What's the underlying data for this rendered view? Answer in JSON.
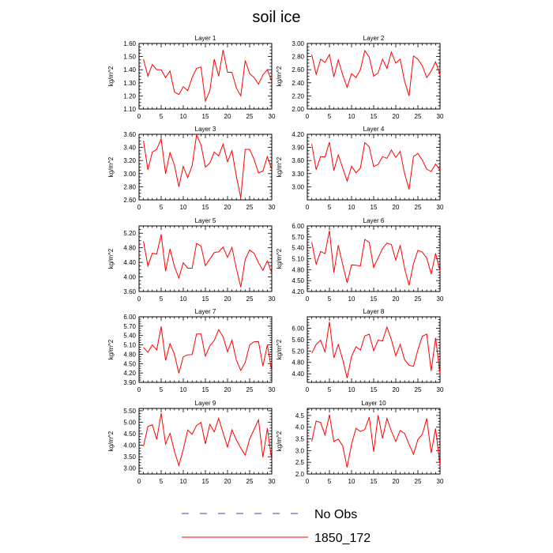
{
  "figure": {
    "title": "soil ice",
    "legend": {
      "placement": "bottom-center",
      "entries": [
        {
          "label": "No Obs",
          "color": "#3b4aa8",
          "style": "dashed"
        },
        {
          "label": "1850_172",
          "color": "#ff0000",
          "style": "solid"
        }
      ]
    }
  },
  "chart_data": [
    {
      "type": "line",
      "title": "Layer 1",
      "ylabel": "kg/m^2",
      "xlim": [
        0,
        30
      ],
      "ylim": [
        1.1,
        1.6
      ],
      "xticks": [
        "0",
        "5",
        "10",
        "15",
        "20",
        "25",
        "30"
      ],
      "yticks": [
        "1.10",
        "1.20",
        "1.30",
        "1.40",
        "1.50",
        "1.60"
      ],
      "series": [
        {
          "color": "#ff0000",
          "x": [
            1,
            2,
            3,
            4,
            5,
            6,
            7,
            8,
            9,
            10,
            11,
            12,
            13,
            14,
            15,
            16,
            17,
            18,
            19,
            20,
            21,
            22,
            23,
            24,
            25,
            26,
            27,
            28,
            29,
            30
          ],
          "y": [
            1.48,
            1.35,
            1.44,
            1.4,
            1.4,
            1.34,
            1.39,
            1.23,
            1.21,
            1.27,
            1.24,
            1.34,
            1.41,
            1.42,
            1.16,
            1.24,
            1.48,
            1.35,
            1.55,
            1.38,
            1.38,
            1.26,
            1.2,
            1.47,
            1.37,
            1.34,
            1.29,
            1.36,
            1.4,
            1.31
          ]
        }
      ]
    },
    {
      "type": "line",
      "title": "Layer 2",
      "ylabel": "kg/m^2",
      "xlim": [
        0,
        30
      ],
      "ylim": [
        2.0,
        3.0
      ],
      "xticks": [
        "0",
        "5",
        "10",
        "15",
        "20",
        "25",
        "30"
      ],
      "yticks": [
        "2.00",
        "2.20",
        "2.40",
        "2.60",
        "2.80",
        "3.00"
      ],
      "series": [
        {
          "color": "#ff0000",
          "x": [
            1,
            2,
            3,
            4,
            5,
            6,
            7,
            8,
            9,
            10,
            11,
            12,
            13,
            14,
            15,
            16,
            17,
            18,
            19,
            20,
            21,
            22,
            23,
            24,
            25,
            26,
            27,
            28,
            29,
            30
          ],
          "y": [
            2.83,
            2.53,
            2.76,
            2.71,
            2.83,
            2.49,
            2.75,
            2.52,
            2.33,
            2.54,
            2.48,
            2.6,
            2.89,
            2.79,
            2.5,
            2.55,
            2.76,
            2.62,
            2.87,
            2.7,
            2.76,
            2.42,
            2.2,
            2.81,
            2.76,
            2.66,
            2.48,
            2.58,
            2.72,
            2.52
          ]
        }
      ]
    },
    {
      "type": "line",
      "title": "Layer 3",
      "ylabel": "kg/m^2",
      "xlim": [
        0,
        30
      ],
      "ylim": [
        2.6,
        3.6
      ],
      "xticks": [
        "0",
        "5",
        "10",
        "15",
        "20",
        "25",
        "30"
      ],
      "yticks": [
        "2.60",
        "2.80",
        "3.00",
        "3.20",
        "3.40",
        "3.60"
      ],
      "series": [
        {
          "color": "#ff0000",
          "x": [
            1,
            2,
            3,
            4,
            5,
            6,
            7,
            8,
            9,
            10,
            11,
            12,
            13,
            14,
            15,
            16,
            17,
            18,
            19,
            20,
            21,
            22,
            23,
            24,
            25,
            26,
            27,
            28,
            29,
            30
          ],
          "y": [
            3.5,
            3.06,
            3.33,
            3.37,
            3.53,
            3.0,
            3.32,
            3.13,
            2.8,
            3.11,
            2.94,
            3.12,
            3.59,
            3.44,
            3.1,
            3.16,
            3.33,
            3.27,
            3.45,
            3.18,
            3.35,
            2.96,
            2.63,
            3.37,
            3.37,
            3.22,
            3.01,
            3.04,
            3.26,
            3.06
          ]
        }
      ]
    },
    {
      "type": "line",
      "title": "Layer 4",
      "ylabel": "kg/m^2",
      "xlim": [
        0,
        30
      ],
      "ylim": [
        2.7,
        4.2
      ],
      "xticks": [
        "0",
        "5",
        "10",
        "15",
        "20",
        "25",
        "30"
      ],
      "yticks": [
        "3.00",
        "3.30",
        "3.60",
        "3.90",
        "4.20"
      ],
      "series": [
        {
          "color": "#ff0000",
          "x": [
            1,
            2,
            3,
            4,
            5,
            6,
            7,
            8,
            9,
            10,
            11,
            12,
            13,
            14,
            15,
            16,
            17,
            18,
            19,
            20,
            21,
            22,
            23,
            24,
            25,
            26,
            27,
            28,
            29,
            30
          ],
          "y": [
            3.98,
            3.39,
            3.69,
            3.68,
            4.02,
            3.37,
            3.73,
            3.43,
            3.13,
            3.47,
            3.32,
            3.43,
            4.01,
            3.91,
            3.46,
            3.51,
            3.69,
            3.65,
            3.84,
            3.67,
            3.81,
            3.3,
            2.94,
            3.69,
            3.76,
            3.61,
            3.4,
            3.35,
            3.52,
            3.38
          ]
        }
      ]
    },
    {
      "type": "line",
      "title": "Layer 5",
      "ylabel": "kg/m^2",
      "xlim": [
        0,
        30
      ],
      "ylim": [
        3.6,
        5.4
      ],
      "xticks": [
        "0",
        "5",
        "10",
        "15",
        "20",
        "25",
        "30"
      ],
      "yticks": [
        "3.60",
        "4.00",
        "4.40",
        "4.80",
        "5.20"
      ],
      "series": [
        {
          "color": "#ff0000",
          "x": [
            1,
            2,
            3,
            4,
            5,
            6,
            7,
            8,
            9,
            10,
            11,
            12,
            13,
            14,
            15,
            16,
            17,
            18,
            19,
            20,
            21,
            22,
            23,
            24,
            25,
            26,
            27,
            28,
            29,
            30
          ],
          "y": [
            4.98,
            4.3,
            4.65,
            4.63,
            5.17,
            4.16,
            4.77,
            4.29,
            3.97,
            4.39,
            4.24,
            4.24,
            4.92,
            4.85,
            4.31,
            4.49,
            4.67,
            4.69,
            4.82,
            4.54,
            4.81,
            4.23,
            3.72,
            4.48,
            4.74,
            4.65,
            4.39,
            4.18,
            4.44,
            4.11
          ]
        }
      ]
    },
    {
      "type": "line",
      "title": "Layer 6",
      "ylabel": "kg/m^2",
      "xlim": [
        0,
        30
      ],
      "ylim": [
        4.2,
        6.0
      ],
      "xticks": [
        "0",
        "5",
        "10",
        "15",
        "20",
        "25",
        "30"
      ],
      "yticks": [
        "4.20",
        "4.50",
        "4.80",
        "5.10",
        "5.40",
        "5.70",
        "6.00"
      ],
      "series": [
        {
          "color": "#ff0000",
          "x": [
            1,
            2,
            3,
            4,
            5,
            6,
            7,
            8,
            9,
            10,
            11,
            12,
            13,
            14,
            15,
            16,
            17,
            18,
            19,
            20,
            21,
            22,
            23,
            24,
            25,
            26,
            27,
            28,
            29,
            30
          ],
          "y": [
            5.55,
            4.95,
            5.3,
            5.24,
            5.87,
            4.72,
            5.47,
            4.94,
            4.44,
            4.93,
            4.92,
            4.9,
            5.63,
            5.55,
            4.86,
            5.12,
            5.38,
            5.53,
            5.49,
            5.06,
            5.47,
            4.83,
            4.37,
            4.96,
            5.33,
            5.28,
            5.12,
            4.68,
            5.25,
            4.76
          ]
        }
      ]
    },
    {
      "type": "line",
      "title": "Layer 7",
      "ylabel": "kg/m^2",
      "xlim": [
        0,
        30
      ],
      "ylim": [
        3.9,
        6.0
      ],
      "xticks": [
        "0",
        "5",
        "10",
        "15",
        "20",
        "25",
        "30"
      ],
      "yticks": [
        "3.90",
        "4.20",
        "4.50",
        "4.80",
        "5.10",
        "5.40",
        "5.70",
        "6.00"
      ],
      "series": [
        {
          "color": "#ff0000",
          "x": [
            1,
            2,
            3,
            4,
            5,
            6,
            7,
            8,
            9,
            10,
            11,
            12,
            13,
            14,
            15,
            16,
            17,
            18,
            19,
            20,
            21,
            22,
            23,
            24,
            25,
            26,
            27,
            28,
            29,
            30
          ],
          "y": [
            5.02,
            4.86,
            5.1,
            4.94,
            5.69,
            4.6,
            5.14,
            4.8,
            4.19,
            4.72,
            4.78,
            4.79,
            5.45,
            5.45,
            4.74,
            5.07,
            5.24,
            5.59,
            5.36,
            4.88,
            5.25,
            4.61,
            4.28,
            4.54,
            5.1,
            5.2,
            5.21,
            4.42,
            5.1,
            4.25
          ]
        }
      ]
    },
    {
      "type": "line",
      "title": "Layer 8",
      "ylabel": "kg/m^2",
      "xlim": [
        0,
        30
      ],
      "ylim": [
        4.1,
        6.4
      ],
      "xticks": [
        "0",
        "5",
        "10",
        "15",
        "20",
        "25",
        "30"
      ],
      "yticks": [
        "4.40",
        "4.80",
        "5.20",
        "5.60",
        "6.00"
      ],
      "series": [
        {
          "color": "#ff0000",
          "x": [
            1,
            2,
            3,
            4,
            5,
            6,
            7,
            8,
            9,
            10,
            11,
            12,
            13,
            14,
            15,
            16,
            17,
            18,
            19,
            20,
            21,
            22,
            23,
            24,
            25,
            26,
            27,
            28,
            29,
            30
          ],
          "y": [
            5.12,
            5.43,
            5.58,
            5.17,
            6.22,
            4.96,
            5.43,
            4.9,
            4.25,
            5.01,
            5.35,
            5.23,
            5.73,
            5.79,
            5.21,
            5.58,
            5.55,
            6.04,
            5.6,
            5.03,
            5.43,
            4.89,
            4.7,
            4.66,
            5.24,
            5.72,
            5.79,
            4.5,
            5.66,
            4.4
          ]
        }
      ]
    },
    {
      "type": "line",
      "title": "Layer 9",
      "ylabel": "kg/m^2",
      "xlim": [
        0,
        30
      ],
      "ylim": [
        2.75,
        5.6
      ],
      "xticks": [
        "0",
        "5",
        "10",
        "15",
        "20",
        "25",
        "30"
      ],
      "yticks": [
        "3.00",
        "3.50",
        "4.00",
        "4.50",
        "5.00",
        "5.50"
      ],
      "series": [
        {
          "color": "#ff0000",
          "x": [
            1,
            2,
            3,
            4,
            5,
            6,
            7,
            8,
            9,
            10,
            11,
            12,
            13,
            14,
            15,
            16,
            17,
            18,
            19,
            20,
            21,
            22,
            23,
            24,
            25,
            26,
            27,
            28,
            29,
            30
          ],
          "y": [
            3.95,
            4.82,
            4.89,
            4.25,
            5.39,
            4.05,
            4.52,
            3.74,
            3.12,
            3.82,
            4.66,
            4.48,
            4.86,
            4.99,
            4.06,
            4.91,
            4.58,
            5.17,
            4.54,
            3.92,
            4.67,
            4.23,
            3.88,
            3.57,
            4.27,
            4.69,
            5.11,
            3.48,
            4.74,
            3.34
          ]
        }
      ]
    },
    {
      "type": "line",
      "title": "Layer 10",
      "ylabel": "kg/m^2",
      "xlim": [
        0,
        30
      ],
      "ylim": [
        2.0,
        4.8
      ],
      "xticks": [
        "0",
        "5",
        "10",
        "15",
        "20",
        "25",
        "30"
      ],
      "yticks": [
        "2.0",
        "2.5",
        "3.0",
        "3.5",
        "4.0",
        "4.5"
      ],
      "series": [
        {
          "color": "#ff0000",
          "x": [
            1,
            2,
            3,
            4,
            5,
            6,
            7,
            8,
            9,
            10,
            11,
            12,
            13,
            14,
            15,
            16,
            17,
            18,
            19,
            20,
            21,
            22,
            23,
            24,
            25,
            26,
            27,
            28,
            29,
            30
          ],
          "y": [
            3.4,
            4.26,
            4.2,
            3.66,
            4.53,
            3.39,
            3.49,
            3.2,
            2.28,
            3.27,
            3.95,
            3.82,
            3.9,
            4.43,
            2.95,
            4.51,
            3.52,
            4.38,
            3.83,
            3.39,
            3.86,
            3.73,
            3.27,
            2.84,
            3.47,
            3.7,
            4.37,
            2.9,
            3.94,
            2.35
          ]
        }
      ]
    }
  ]
}
